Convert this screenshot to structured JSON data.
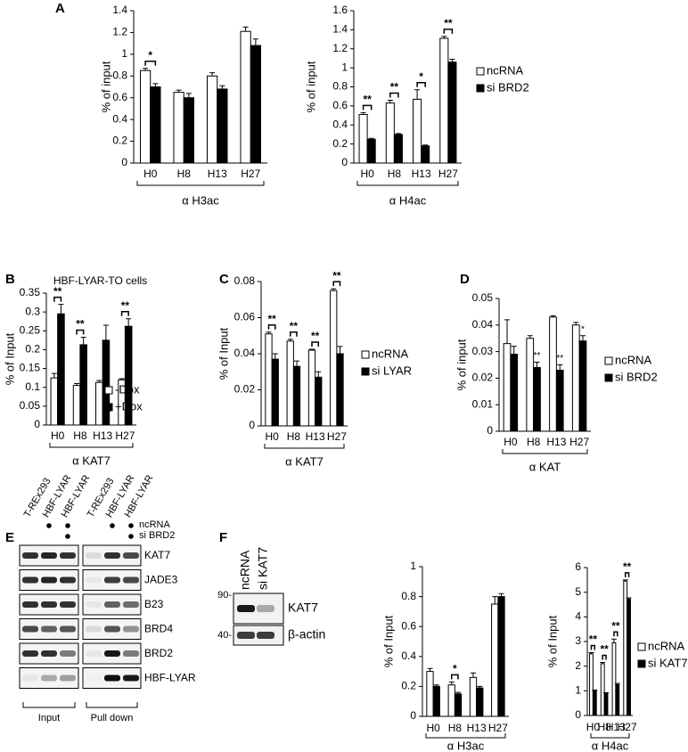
{
  "panel_labels": [
    "A",
    "B",
    "C",
    "D",
    "E",
    "F"
  ],
  "chart_data": [
    {
      "type": "bar",
      "ylabel": "% of input",
      "xlabel": "α H3ac",
      "categories": [
        "H0",
        "H8",
        "H13",
        "H27"
      ],
      "ylim": [
        0,
        1.4
      ],
      "yticks": [
        0,
        0.2,
        0.4,
        0.6,
        0.8,
        1,
        1.2,
        1.4
      ],
      "series": [
        {
          "color": "#ffffff",
          "values": [
            0.85,
            0.65,
            0.8,
            1.21
          ],
          "errors": [
            0.02,
            0.02,
            0.03,
            0.04
          ]
        },
        {
          "color": "#000000",
          "values": [
            0.7,
            0.6,
            0.68,
            1.08
          ],
          "errors": [
            0.03,
            0.04,
            0.03,
            0.06
          ]
        }
      ],
      "significance": [
        "*",
        null,
        null,
        null
      ]
    },
    {
      "type": "bar",
      "ylabel": "% of input",
      "xlabel": "α H4ac",
      "categories": [
        "H0",
        "H8",
        "H13",
        "H27"
      ],
      "ylim": [
        0,
        1.6
      ],
      "yticks": [
        0,
        0.2,
        0.4,
        0.6,
        0.8,
        1,
        1.2,
        1.4,
        1.6
      ],
      "legend": "right",
      "series": [
        {
          "name": "ncRNA",
          "color": "#ffffff",
          "values": [
            0.51,
            0.63,
            0.67,
            1.31
          ],
          "errors": [
            0.02,
            0.03,
            0.1,
            0.02
          ]
        },
        {
          "name": "si BRD2",
          "color": "#000000",
          "values": [
            0.25,
            0.3,
            0.18,
            1.06
          ],
          "errors": [
            0.01,
            0.01,
            0.01,
            0.03
          ]
        }
      ],
      "significance": [
        "**",
        "**",
        "*",
        "**"
      ]
    },
    {
      "type": "bar",
      "title": "HBF-LYAR-TO cells",
      "ylabel": "% of Input",
      "xlabel": "α KAT7",
      "categories": [
        "H0",
        "H8",
        "H13",
        "H27"
      ],
      "ylim": [
        0,
        0.35
      ],
      "yticks": [
        0,
        0.05,
        0.1,
        0.15,
        0.2,
        0.25,
        0.3,
        0.35
      ],
      "legend": "lower right",
      "series": [
        {
          "name": "-Dox",
          "color": "#ffffff",
          "values": [
            0.125,
            0.105,
            0.113,
            0.12
          ],
          "errors": [
            0.012,
            0.005,
            0.005,
            0.003
          ]
        },
        {
          "name": "+Dox",
          "color": "#000000",
          "values": [
            0.295,
            0.213,
            0.225,
            0.262
          ],
          "errors": [
            0.025,
            0.02,
            0.04,
            0.02
          ]
        }
      ],
      "significance": [
        "**",
        "**",
        null,
        "**"
      ]
    },
    {
      "type": "bar",
      "ylabel": "% of Input",
      "xlabel": "α KAT7",
      "categories": [
        "H0",
        "H8",
        "H13",
        "H27"
      ],
      "ylim": [
        0,
        0.08
      ],
      "yticks": [
        0,
        0.02,
        0.04,
        0.06,
        0.08
      ],
      "legend": "right",
      "series": [
        {
          "name": "ncRNA",
          "color": "#ffffff",
          "values": [
            0.051,
            0.047,
            0.042,
            0.075
          ],
          "errors": [
            0.001,
            0.001,
            0.0005,
            0.001
          ]
        },
        {
          "name": "si LYAR",
          "color": "#000000",
          "values": [
            0.037,
            0.033,
            0.027,
            0.04
          ],
          "errors": [
            0.003,
            0.003,
            0.003,
            0.004
          ]
        }
      ],
      "significance": [
        "**",
        "**",
        "**",
        "**"
      ]
    },
    {
      "type": "bar",
      "ylabel": "% of input",
      "xlabel": "α KAT",
      "categories": [
        "H0",
        "H8",
        "H13",
        "H27"
      ],
      "ylim": [
        0,
        0.05
      ],
      "yticks": [
        0,
        0.01,
        0.02,
        0.03,
        0.04,
        0.05
      ],
      "legend": "right",
      "series": [
        {
          "name": "ncRNA",
          "color": "#ffffff",
          "values": [
            0.033,
            0.035,
            0.043,
            0.04
          ],
          "errors": [
            0.009,
            0.001,
            0.0005,
            0.001
          ]
        },
        {
          "name": "si BRD2",
          "color": "#000000",
          "values": [
            0.029,
            0.024,
            0.023,
            0.034
          ],
          "errors": [
            0.003,
            0.002,
            0.002,
            0.002
          ],
          "significance": [
            null,
            "**",
            "**",
            "*"
          ]
        }
      ]
    },
    {
      "type": "bar",
      "ylabel": "% of Input",
      "xlabel": "α H3ac",
      "categories": [
        "H0",
        "H8",
        "H13",
        "H27"
      ],
      "ylim": [
        0,
        1
      ],
      "yticks": [
        0,
        0.2,
        0.4,
        0.6,
        0.8,
        1
      ],
      "series": [
        {
          "color": "#ffffff",
          "values": [
            0.3,
            0.21,
            0.26,
            0.75
          ],
          "errors": [
            0.02,
            0.02,
            0.03,
            0.05
          ]
        },
        {
          "color": "#000000",
          "values": [
            0.2,
            0.15,
            0.19,
            0.8
          ],
          "errors": [
            0.01,
            0.01,
            0.01,
            0.02
          ]
        }
      ],
      "significance": [
        null,
        "*",
        null,
        null
      ]
    },
    {
      "type": "bar",
      "ylabel": "% of Input",
      "xlabel": "α H4ac",
      "categories": [
        "H0",
        "H8",
        "H13",
        "H27"
      ],
      "ylim": [
        0,
        6
      ],
      "yticks": [
        0,
        1,
        2,
        3,
        4,
        5,
        6
      ],
      "legend": "right",
      "series": [
        {
          "name": "ncRNA",
          "color": "#ffffff",
          "values": [
            2.5,
            2.1,
            2.95,
            5.45
          ],
          "errors": [
            0.05,
            0.05,
            0.15,
            0.05
          ]
        },
        {
          "name": "si KAT7",
          "color": "#000000",
          "values": [
            1.0,
            0.9,
            1.25,
            4.72
          ],
          "errors": [
            0.03,
            0.02,
            0.05,
            0.05
          ]
        }
      ],
      "significance": [
        "**",
        "**",
        "**",
        "**"
      ]
    }
  ],
  "blot_e": {
    "columns": [
      "T-REx293",
      "HBF-LYAR",
      "HBF-LYAR",
      "T-REx293",
      "HBF-LYAR",
      "HBF-LYAR"
    ],
    "conditions": [
      "ncRNA",
      "si BRD2"
    ],
    "rows": [
      "KAT7",
      "JADE3",
      "B23",
      "BRD4",
      "BRD2",
      "HBF-LYAR"
    ],
    "groups": [
      "Input",
      "Pull down"
    ]
  },
  "blot_f": {
    "lanes": [
      "ncRNA",
      "si KAT7"
    ],
    "markers": [
      "90-",
      "40-"
    ],
    "rows": [
      "KAT7",
      "β-actin"
    ]
  }
}
